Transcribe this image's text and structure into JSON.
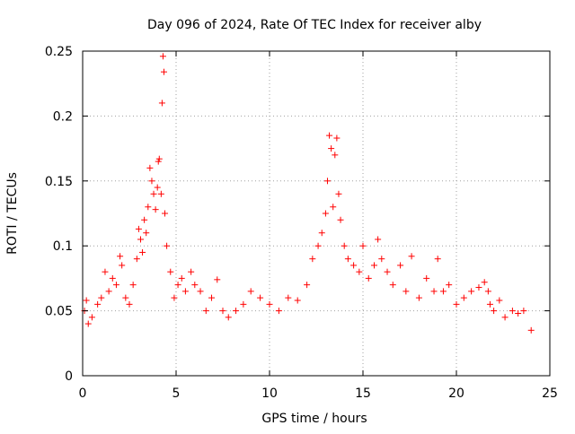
{
  "chart_data": {
    "type": "scatter",
    "title": "Day 096 of 2024, Rate Of TEC Index for receiver alby",
    "xlabel": "GPS time / hours",
    "ylabel": "ROTI / TECUs",
    "xlim": [
      0,
      25
    ],
    "ylim": [
      0,
      0.25
    ],
    "x_ticks": [
      0,
      5,
      10,
      15,
      20,
      25
    ],
    "x_tick_labels": [
      "0",
      "5",
      "10",
      "15",
      "20",
      "25"
    ],
    "y_ticks": [
      0,
      0.05,
      0.1,
      0.15,
      0.2,
      0.25
    ],
    "y_tick_labels": [
      "0",
      "0.05",
      "0.1",
      "0.15",
      "0.2",
      "0.25"
    ],
    "grid": true,
    "legend": "none",
    "marker": "+",
    "marker_color": "#ff0000",
    "series": [
      {
        "x": [
          0.1,
          0.2,
          0.3,
          0.5,
          0.8,
          1.0,
          1.2,
          1.4,
          1.6,
          1.8,
          2.0,
          2.1,
          2.3,
          2.5,
          2.7,
          2.9,
          3.0,
          3.1,
          3.2,
          3.3,
          3.4,
          3.5,
          3.6,
          3.7,
          3.8,
          3.9,
          4.0,
          4.05,
          4.1,
          4.2,
          4.25,
          4.3,
          4.35,
          4.4,
          4.5,
          4.7,
          4.9,
          5.1,
          5.3,
          5.5,
          5.8,
          6.0,
          6.3,
          6.6,
          6.9,
          7.2,
          7.5,
          7.8,
          8.2,
          8.6,
          9.0,
          9.5,
          10.0,
          10.5,
          11.0,
          11.5,
          12.0,
          12.3,
          12.6,
          12.8,
          13.0,
          13.1,
          13.2,
          13.3,
          13.4,
          13.5,
          13.6,
          13.7,
          13.8,
          14.0,
          14.2,
          14.5,
          14.8,
          15.0,
          15.3,
          15.6,
          15.8,
          16.0,
          16.3,
          16.6,
          17.0,
          17.3,
          17.6,
          18.0,
          18.4,
          18.8,
          19.0,
          19.3,
          19.6,
          20.0,
          20.4,
          20.8,
          21.2,
          21.5,
          21.7,
          21.8,
          22.0,
          22.3,
          22.6,
          23.0,
          23.3,
          23.6,
          24.0
        ],
        "y": [
          0.05,
          0.058,
          0.04,
          0.045,
          0.055,
          0.06,
          0.08,
          0.065,
          0.075,
          0.07,
          0.092,
          0.085,
          0.06,
          0.055,
          0.07,
          0.09,
          0.113,
          0.105,
          0.095,
          0.12,
          0.11,
          0.13,
          0.16,
          0.15,
          0.14,
          0.128,
          0.145,
          0.165,
          0.167,
          0.14,
          0.21,
          0.246,
          0.234,
          0.125,
          0.1,
          0.08,
          0.06,
          0.07,
          0.075,
          0.065,
          0.08,
          0.07,
          0.065,
          0.05,
          0.06,
          0.074,
          0.05,
          0.045,
          0.05,
          0.055,
          0.065,
          0.06,
          0.055,
          0.05,
          0.06,
          0.058,
          0.07,
          0.09,
          0.1,
          0.11,
          0.125,
          0.15,
          0.185,
          0.175,
          0.13,
          0.17,
          0.183,
          0.14,
          0.12,
          0.1,
          0.09,
          0.085,
          0.08,
          0.1,
          0.075,
          0.085,
          0.105,
          0.09,
          0.08,
          0.07,
          0.085,
          0.065,
          0.092,
          0.06,
          0.075,
          0.065,
          0.09,
          0.065,
          0.07,
          0.055,
          0.06,
          0.065,
          0.068,
          0.072,
          0.065,
          0.055,
          0.05,
          0.058,
          0.045,
          0.05,
          0.048,
          0.05,
          0.035
        ]
      }
    ]
  }
}
